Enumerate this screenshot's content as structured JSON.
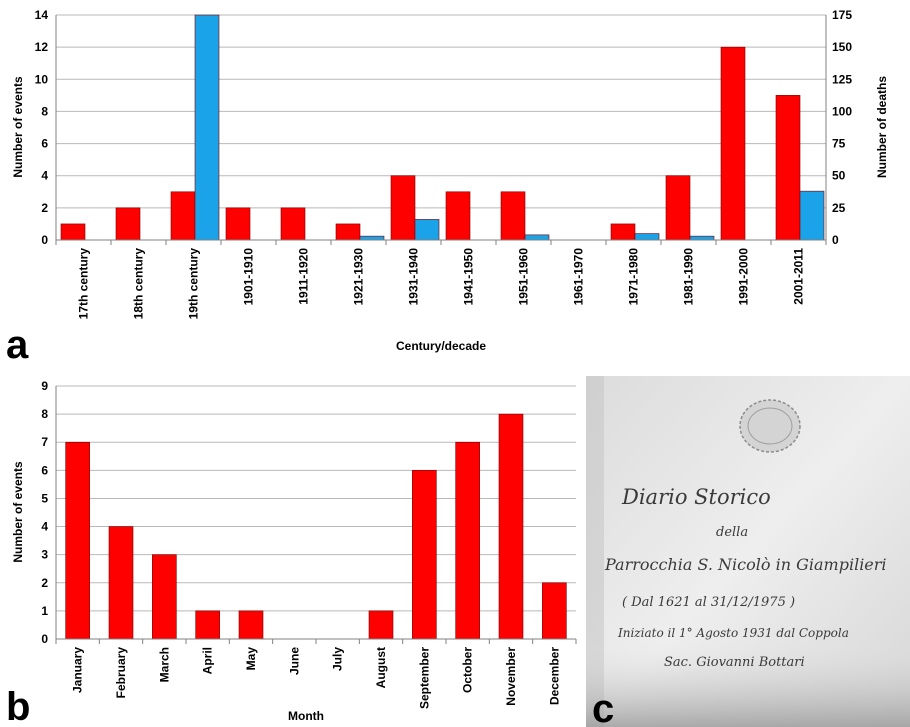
{
  "panels": {
    "a": "a",
    "b": "b",
    "c": "c"
  },
  "chart_data": [
    {
      "type": "bar",
      "panel": "a",
      "categories": [
        "17th century",
        "18th century",
        "19th century",
        "1901-1910",
        "1911-1920",
        "1921-1930",
        "1931-1940",
        "1941-1950",
        "1951-1960",
        "1961-1970",
        "1971-1980",
        "1981-1990",
        "1991-2000",
        "2001-2011"
      ],
      "xlabel": "Century/decade",
      "ylabel": "Number of events",
      "y2label": "Number of deaths",
      "ylim": [
        0,
        14
      ],
      "y_ticks": [
        "0",
        "2",
        "4",
        "6",
        "8",
        "10",
        "12",
        "14"
      ],
      "y2lim": [
        0,
        175
      ],
      "y2_ticks": [
        "0",
        "25",
        "50",
        "75",
        "100",
        "125",
        "150",
        "175"
      ],
      "grid": true,
      "series": [
        {
          "axis": "left",
          "color": "#ff0000",
          "values": [
            1,
            2,
            3,
            2,
            2,
            1,
            4,
            3,
            3,
            0,
            1,
            4,
            12,
            9
          ]
        },
        {
          "axis": "right",
          "color": "#1aa3e8",
          "values": [
            0,
            0,
            175,
            0,
            0,
            3,
            16,
            0,
            4,
            0,
            5,
            3,
            0,
            38
          ]
        }
      ]
    },
    {
      "type": "bar",
      "panel": "b",
      "categories": [
        "January",
        "February",
        "March",
        "April",
        "May",
        "June",
        "July",
        "August",
        "September",
        "October",
        "November",
        "December"
      ],
      "xlabel": "Month",
      "ylabel": "Number of events",
      "ylim": [
        0,
        9
      ],
      "y_ticks": [
        "0",
        "1",
        "2",
        "3",
        "4",
        "5",
        "6",
        "7",
        "8",
        "9"
      ],
      "grid": true,
      "series": [
        {
          "color": "#ff0000",
          "values": [
            7,
            4,
            3,
            1,
            1,
            0,
            0,
            1,
            6,
            7,
            8,
            2
          ]
        }
      ]
    }
  ],
  "document_photo": {
    "lines": [
      "Diario Storico",
      "della",
      "Parrocchia S. Nicolò in Giampilieri",
      "( Dal 1621 al 31/12/1975 )",
      "Iniziato il 1° Agosto 1931 dal Coppola",
      "Sac. Giovanni Bottari"
    ]
  }
}
